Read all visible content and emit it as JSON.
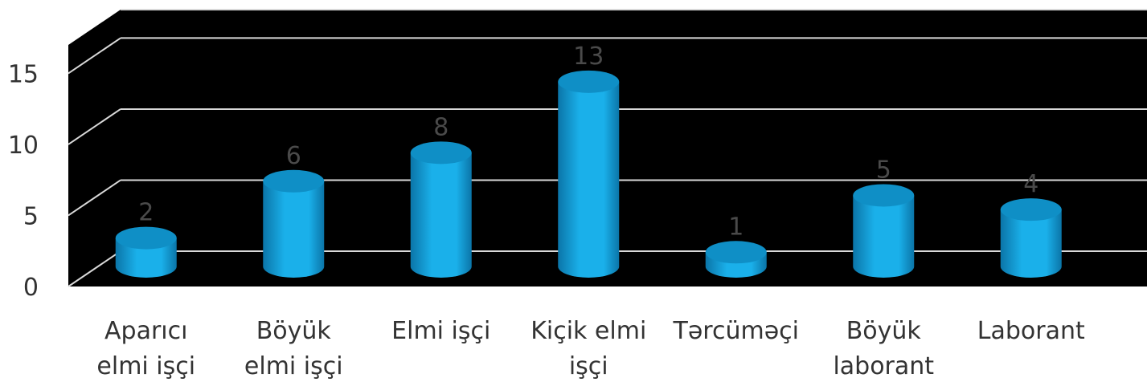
{
  "chart_data": {
    "type": "bar",
    "style": "3d-cylinder",
    "categories": [
      [
        "Aparıcı",
        "elmi işçi"
      ],
      [
        "Böyük",
        "elmi işçi"
      ],
      [
        "Elmi işçi"
      ],
      [
        "Kiçik elmi",
        "işçi"
      ],
      [
        "Tərcüməçi"
      ],
      [
        "Böyük",
        "laborant"
      ],
      [
        "Laborant"
      ]
    ],
    "values": [
      2,
      6,
      8,
      13,
      1,
      5,
      4
    ],
    "data_labels": [
      "2",
      "6",
      "8",
      "13",
      "1",
      "5",
      "4"
    ],
    "y_ticks": [
      "0",
      "5",
      "10",
      "15"
    ],
    "ylim": [
      0,
      17
    ],
    "grid": true,
    "legend": "none",
    "colors": {
      "plot_background": "#000000",
      "gridline": "#d9d9d9",
      "bar_main": "#1ab0ea",
      "bar_top": "#0f8fc6",
      "bar_dark": "#0b75a8"
    }
  }
}
